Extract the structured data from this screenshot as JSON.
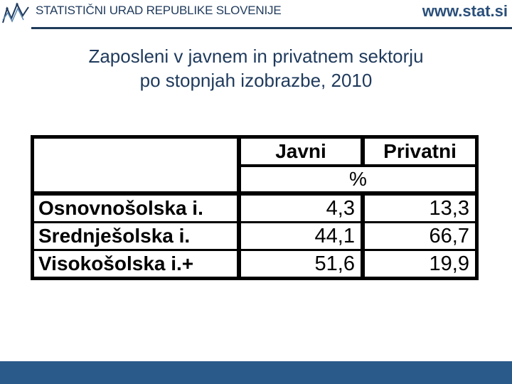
{
  "header": {
    "org_name": "STATISTIČNI URAD REPUBLIKE SLOVENIJE",
    "site_url": "www.stat.si",
    "logo_icon": "sursi-logo-icon"
  },
  "title": {
    "line1": "Zaposleni v javnem in privatnem sektorju",
    "line2": "po stopnjah izobrazbe, 2010"
  },
  "table": {
    "columns": [
      "Javni",
      "Privatni"
    ],
    "unit": "%",
    "rows": [
      {
        "label": "Osnovnošolska i.",
        "javni": "4,3",
        "privatni": "13,3"
      },
      {
        "label": "Srednješolska i.",
        "javni": "44,1",
        "privatni": "66,7"
      },
      {
        "label": "Visokošolska i.+",
        "javni": "51,6",
        "privatni": "19,9"
      }
    ]
  },
  "colors": {
    "brand_dark": "#1f3a5c",
    "brand_blue": "#2a5a8a"
  }
}
